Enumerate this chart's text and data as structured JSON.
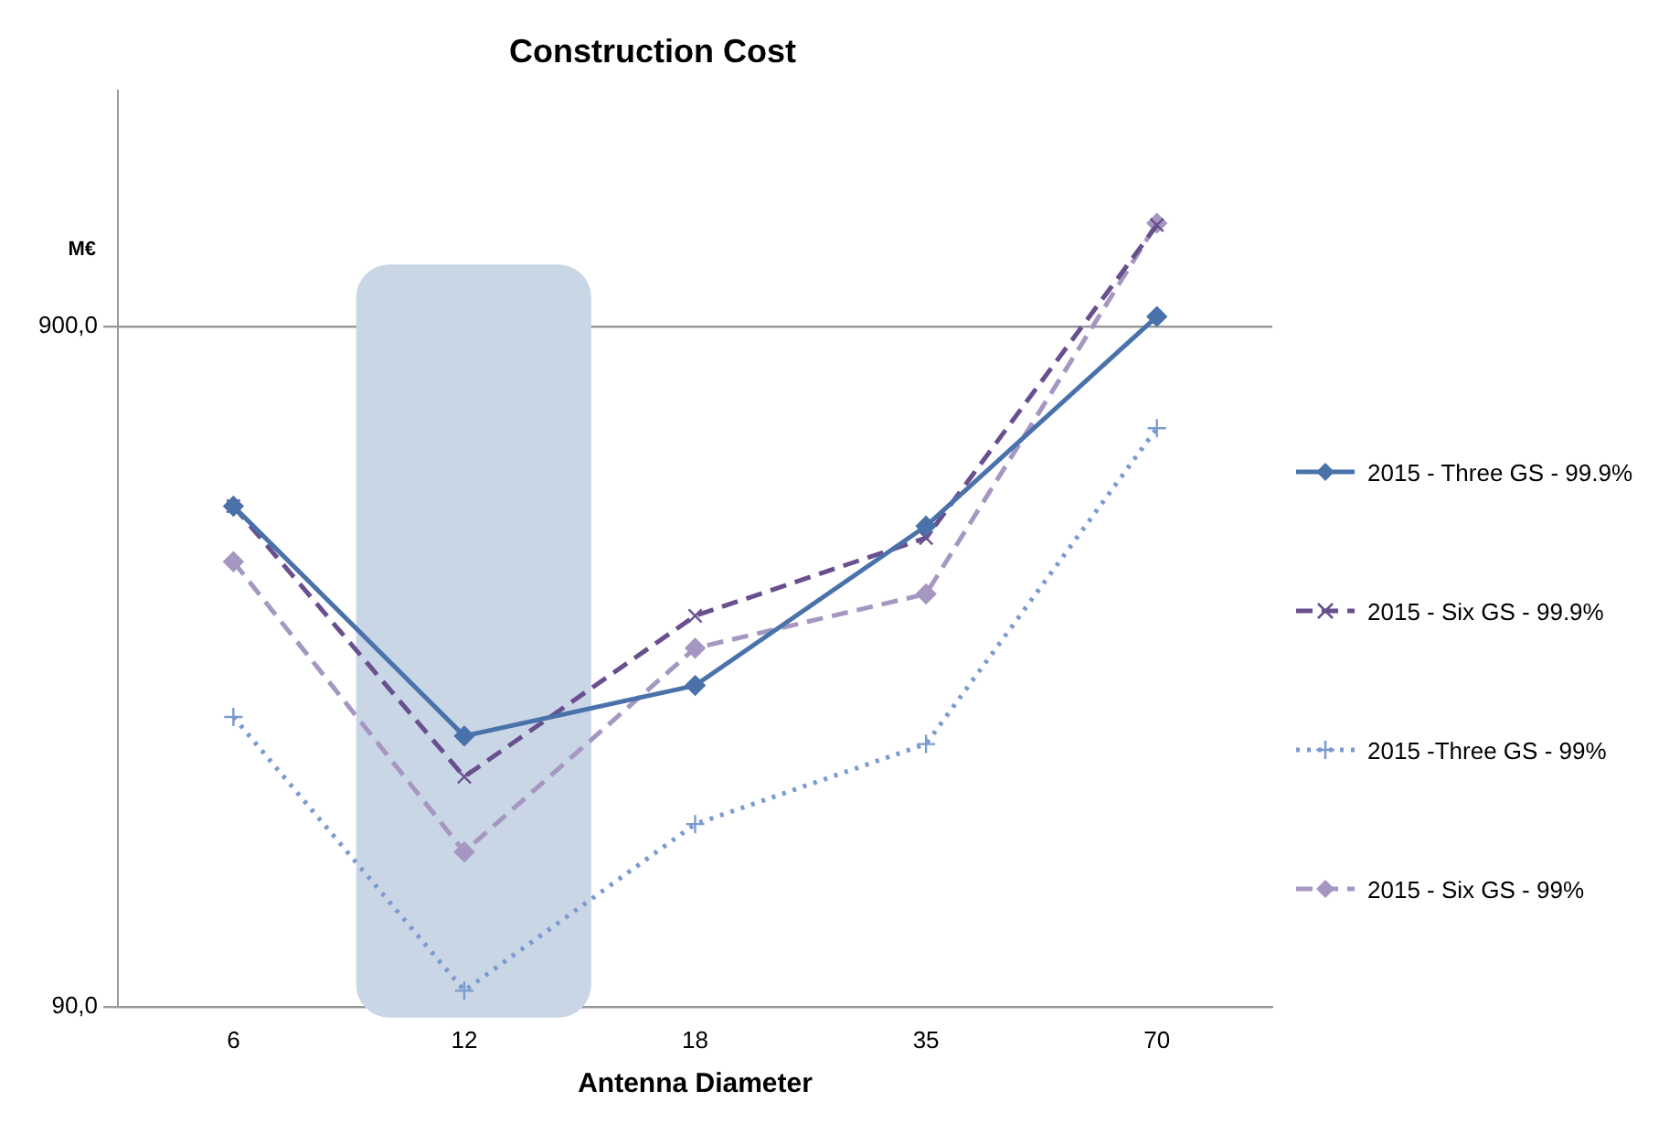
{
  "chart_data": {
    "type": "line",
    "title": "Construction Cost",
    "xlabel": "Antenna Diameter",
    "ylabel": "M€",
    "categories": [
      "6",
      "12",
      "18",
      "35",
      "70"
    ],
    "series": [
      {
        "name": "2015 - Three GS - 99.9%",
        "color": "#4a72aa",
        "values": [
          490,
          225,
          267,
          458,
          931
        ],
        "marker": "diamond",
        "line_style": "solid"
      },
      {
        "name": "2015 - Six GS - 99.9%",
        "color": "#6a4f8e",
        "values": [
          490,
          196,
          338,
          440,
          1269
        ],
        "marker": "cross",
        "line_style": "dashed"
      },
      {
        "name": "2015 -Three GS - 99%",
        "color": "#7b9bcf",
        "values": [
          240,
          95,
          167,
          219,
          638
        ],
        "marker": "plus",
        "line_style": "dotted"
      },
      {
        "name": "2015 - Six GS - 99%",
        "color": "#a597c2",
        "values": [
          406,
          152,
          303,
          364,
          1277
        ],
        "marker": "diamond",
        "line_style": "dashed"
      }
    ],
    "log": "y",
    "ylim": [
      90,
      2000
    ],
    "yticks": [
      {
        "value": 90,
        "label": "90,0"
      },
      {
        "value": 900,
        "label": "900,0"
      }
    ],
    "grid": "y",
    "legend": "right",
    "bands": [
      {
        "axis": "x",
        "from": "12",
        "to": "12",
        "color": "#c9d6e6"
      }
    ]
  }
}
